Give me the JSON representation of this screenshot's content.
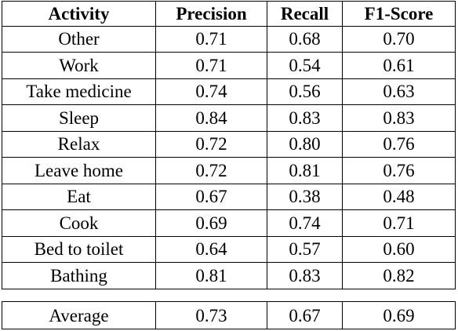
{
  "table": {
    "headers": [
      "Activity",
      "Precision",
      "Recall",
      "F1-Score"
    ],
    "rows": [
      {
        "activity": "Other",
        "precision": "0.71",
        "recall": "0.68",
        "f1": "0.70"
      },
      {
        "activity": "Work",
        "precision": "0.71",
        "recall": "0.54",
        "f1": "0.61"
      },
      {
        "activity": "Take medicine",
        "precision": "0.74",
        "recall": "0.56",
        "f1": "0.63"
      },
      {
        "activity": "Sleep",
        "precision": "0.84",
        "recall": "0.83",
        "f1": "0.83"
      },
      {
        "activity": "Relax",
        "precision": "0.72",
        "recall": "0.80",
        "f1": "0.76"
      },
      {
        "activity": "Leave home",
        "precision": "0.72",
        "recall": "0.81",
        "f1": "0.76"
      },
      {
        "activity": "Eat",
        "precision": "0.67",
        "recall": "0.38",
        "f1": "0.48"
      },
      {
        "activity": "Cook",
        "precision": "0.69",
        "recall": "0.74",
        "f1": "0.71"
      },
      {
        "activity": "Bed to toilet",
        "precision": "0.64",
        "recall": "0.57",
        "f1": "0.60"
      },
      {
        "activity": "Bathing",
        "precision": "0.81",
        "recall": "0.83",
        "f1": "0.82"
      }
    ],
    "average": {
      "activity": "Average",
      "precision": "0.73",
      "recall": "0.67",
      "f1": "0.69"
    }
  }
}
